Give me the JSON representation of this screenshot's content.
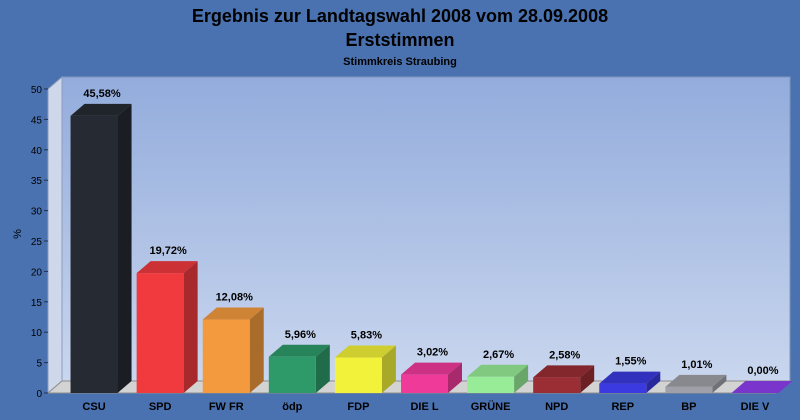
{
  "chart_data": {
    "type": "bar",
    "title": "Ergebnis zur Landtagswahl 2008 vom 28.09.2008",
    "subtitle": "Erststimmen",
    "caption": "Stimmkreis Straubing",
    "xlabel": "",
    "ylabel": "%",
    "ylim": [
      0,
      50
    ],
    "yticks": [
      0,
      5,
      10,
      15,
      20,
      25,
      30,
      35,
      40,
      45,
      50
    ],
    "grid": false,
    "legend": "none",
    "categories": [
      "CSU",
      "SPD",
      "FW FR",
      "ödp",
      "FDP",
      "DIE L",
      "GRÜNE",
      "NPD",
      "REP",
      "BP",
      "DIE V"
    ],
    "values": [
      45.58,
      19.72,
      12.08,
      5.96,
      5.83,
      3.02,
      2.67,
      2.58,
      1.55,
      1.01,
      0.0
    ],
    "value_labels": [
      "45,58%",
      "19,72%",
      "12,08%",
      "5,96%",
      "5,83%",
      "3,02%",
      "2,67%",
      "2,58%",
      "1,55%",
      "1,01%",
      "0,00%"
    ],
    "colors": [
      "#262a33",
      "#f03a3e",
      "#f39a3e",
      "#2e9a6a",
      "#f2f23a",
      "#f03a9a",
      "#98ec98",
      "#9a2e34",
      "#3a3ae0",
      "#a0a0a8",
      "#8e3ef0"
    ]
  }
}
